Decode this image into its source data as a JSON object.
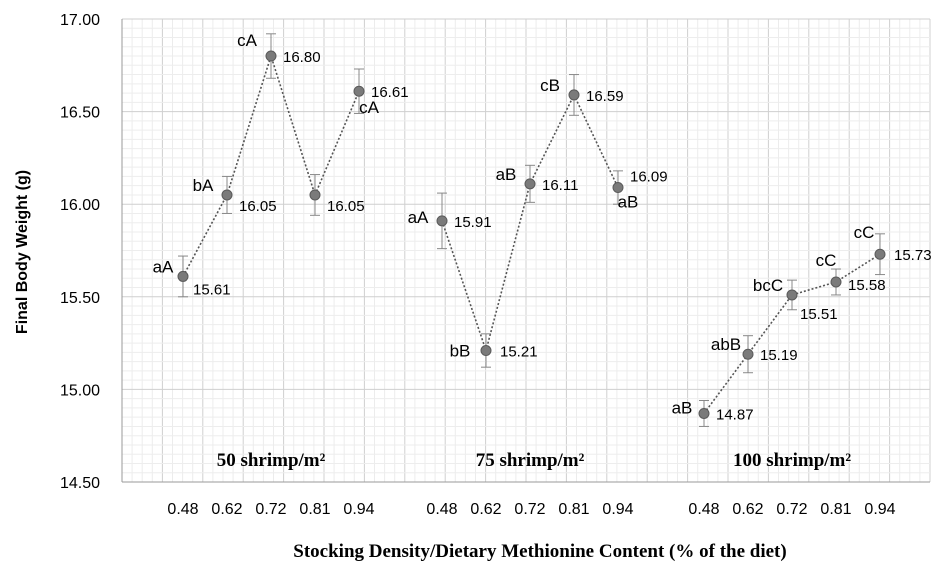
{
  "chart_data": {
    "type": "line",
    "xlabel": "Stocking Density/Dietary Methionine Content (% of the diet)",
    "ylabel": "Final Body Weight (g)",
    "ylim": [
      14.5,
      17.0
    ],
    "yticks": [
      "14.50",
      "15.00",
      "15.50",
      "16.00",
      "16.50",
      "17.00"
    ],
    "categories": [
      "0.48",
      "0.62",
      "0.72",
      "0.81",
      "0.94"
    ],
    "grid": true,
    "legend": "none",
    "groups": [
      {
        "title": "50 shrimp/m²",
        "values": [
          15.61,
          16.05,
          16.8,
          16.05,
          16.61
        ],
        "value_labels": [
          "15.61",
          "16.05",
          "16.80",
          "16.05",
          "16.61"
        ],
        "errors": [
          0.11,
          0.1,
          0.12,
          0.11,
          0.12
        ],
        "letters": [
          "aA",
          "bA",
          "cA",
          "",
          "cA"
        ]
      },
      {
        "title": "75 shrimp/m²",
        "values": [
          15.91,
          15.21,
          16.11,
          16.59,
          16.09
        ],
        "value_labels": [
          "15.91",
          "15.21",
          "16.11",
          "16.59",
          "16.09"
        ],
        "errors": [
          0.15,
          0.09,
          0.1,
          0.11,
          0.09
        ],
        "letters": [
          "aA",
          "bB",
          "aB",
          "cB",
          "aB"
        ]
      },
      {
        "title": "100 shrimp/m²",
        "values": [
          14.87,
          15.19,
          15.51,
          15.58,
          15.73
        ],
        "value_labels": [
          "14.87",
          "15.19",
          "15.51",
          "15.58",
          "15.73"
        ],
        "errors": [
          0.07,
          0.1,
          0.08,
          0.07,
          0.11
        ],
        "letters": [
          "aB",
          "abB",
          "bcC",
          "cC",
          "cC"
        ]
      }
    ]
  }
}
